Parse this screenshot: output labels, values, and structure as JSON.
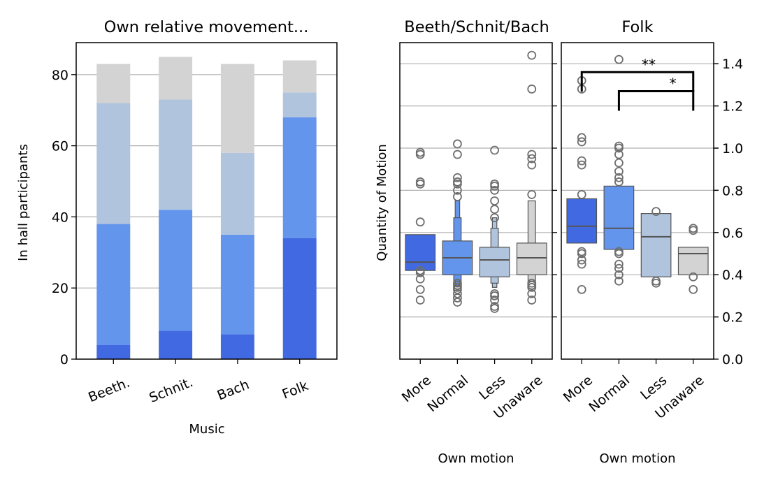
{
  "chart_data": [
    {
      "type": "bar",
      "stacked": true,
      "title": "Own relative movement...",
      "xlabel": "Music",
      "ylabel": "In hall participants",
      "categories": [
        "Beeth.",
        "Schnit.",
        "Bach",
        "Folk"
      ],
      "ylim": [
        0,
        89
      ],
      "yticks": [
        0,
        20,
        40,
        60,
        80
      ],
      "grid": "y",
      "series": [
        {
          "color": "#4169e1",
          "values": [
            4,
            8,
            7,
            34
          ]
        },
        {
          "color": "#6495ed",
          "values": [
            34,
            34,
            28,
            34
          ]
        },
        {
          "color": "#b0c4de",
          "values": [
            34,
            31,
            23,
            7
          ]
        },
        {
          "color": "#d3d3d3",
          "values": [
            11,
            12,
            25,
            9
          ]
        }
      ]
    },
    {
      "type": "boxen",
      "title": "Beeth/Schnit/Bach",
      "xlabel": "Own motion",
      "ylabel": "Quantity of Motion",
      "categories": [
        "More",
        "Normal",
        "Less",
        "Unaware"
      ],
      "ylim": [
        0,
        1.5
      ],
      "grid": "y",
      "groups": [
        {
          "color": "#4169e1",
          "median": 0.46,
          "boxes": [
            [
              0.42,
              0.59
            ]
          ],
          "outliers": [
            0.28,
            0.33,
            0.38,
            0.41,
            0.42,
            0.65,
            0.83,
            0.84,
            0.97,
            0.98
          ]
        },
        {
          "color": "#6495ed",
          "median": 0.48,
          "boxes": [
            [
              0.4,
              0.56
            ],
            [
              0.37,
              0.67
            ],
            [
              0.35,
              0.75
            ]
          ],
          "outliers": [
            0.27,
            0.29,
            0.31,
            0.33,
            0.34,
            0.35,
            0.36,
            0.77,
            0.8,
            0.83,
            0.84,
            0.86,
            0.97,
            1.02
          ]
        },
        {
          "color": "#b0c4de",
          "median": 0.47,
          "boxes": [
            [
              0.39,
              0.53
            ],
            [
              0.36,
              0.62
            ],
            [
              0.34,
              0.67
            ]
          ],
          "outliers": [
            0.24,
            0.25,
            0.28,
            0.3,
            0.3,
            0.31,
            0.67,
            0.71,
            0.75,
            0.8,
            0.82,
            0.83,
            0.99
          ]
        },
        {
          "color": "#d3d3d3",
          "median": 0.48,
          "boxes": [
            [
              0.4,
              0.55
            ],
            [
              0.37,
              0.75
            ]
          ],
          "outliers": [
            0.28,
            0.31,
            0.34,
            0.35,
            0.36,
            0.78,
            0.92,
            0.95,
            0.97,
            1.28,
            1.44
          ]
        }
      ]
    },
    {
      "type": "boxen",
      "title": "Folk",
      "xlabel": "Own motion",
      "categories": [
        "More",
        "Normal",
        "Less",
        "Unaware"
      ],
      "ylim": [
        0,
        1.5
      ],
      "yticks": [
        0.0,
        0.2,
        0.4,
        0.6,
        0.8,
        1.0,
        1.2,
        1.4
      ],
      "ytick_labels": [
        "0.0",
        "0.2",
        "0.4",
        "0.6",
        "0.8",
        "1.0",
        "1.2",
        "1.4"
      ],
      "grid": "y",
      "groups": [
        {
          "color": "#4169e1",
          "median": 0.63,
          "boxes": [
            [
              0.55,
              0.76
            ]
          ],
          "outliers": [
            0.33,
            0.45,
            0.47,
            0.5,
            0.51,
            0.78,
            0.92,
            0.94,
            1.03,
            1.05,
            1.28,
            1.32
          ]
        },
        {
          "color": "#6495ed",
          "median": 0.62,
          "boxes": [
            [
              0.52,
              0.82
            ]
          ],
          "outliers": [
            0.37,
            0.4,
            0.43,
            0.45,
            0.5,
            0.51,
            0.84,
            0.86,
            0.89,
            0.93,
            0.97,
            1.0,
            1.01,
            1.42
          ]
        },
        {
          "color": "#b0c4de",
          "median": 0.58,
          "boxes": [
            [
              0.39,
              0.69
            ]
          ],
          "outliers": [
            0.36,
            0.37,
            0.7
          ]
        },
        {
          "color": "#d3d3d3",
          "median": 0.5,
          "boxes": [
            [
              0.4,
              0.53
            ]
          ],
          "outliers": [
            0.33,
            0.39,
            0.61,
            0.62
          ]
        }
      ],
      "annotations": [
        {
          "label": "**",
          "from": "More",
          "to": "Unaware",
          "level": 1.36
        },
        {
          "label": "*",
          "from": "Normal",
          "to": "Unaware",
          "level": 1.27
        }
      ]
    }
  ]
}
